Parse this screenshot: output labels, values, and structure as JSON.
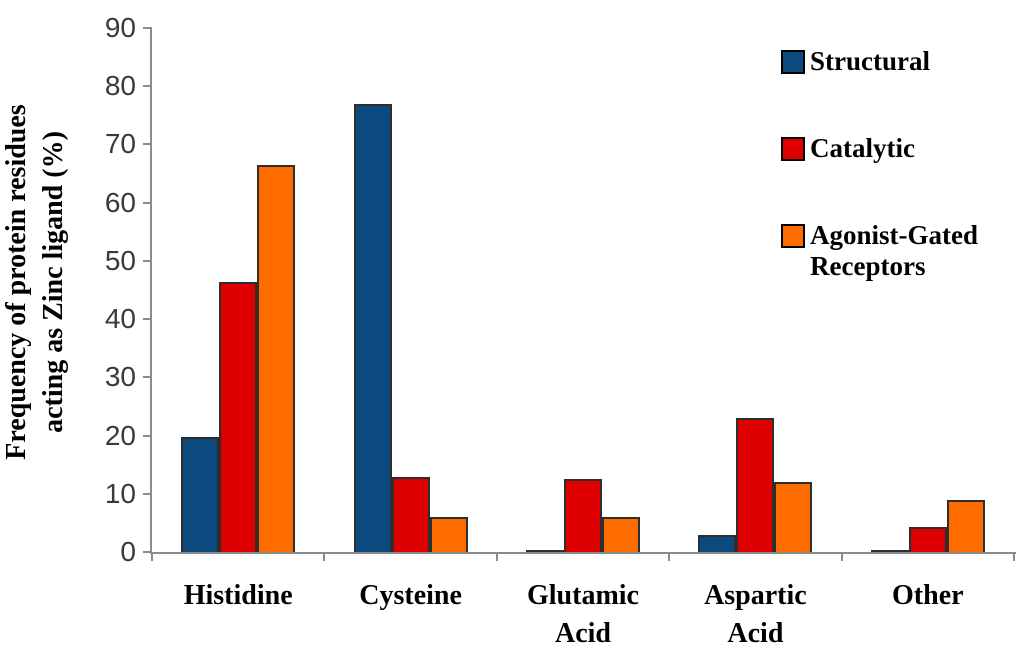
{
  "chart_data": {
    "type": "bar",
    "title": "",
    "xlabel": "",
    "ylabel": "Frequency of protein residues acting as Zinc ligand (%)",
    "ylabel_lines": [
      "Frequency of protein residues",
      "acting as Zinc ligand (%)"
    ],
    "ylim": [
      0,
      90
    ],
    "yticks": [
      0,
      10,
      20,
      30,
      40,
      50,
      60,
      70,
      80,
      90
    ],
    "grid": false,
    "legend_position": "top-right",
    "categories": [
      "Histidine",
      "Cysteine",
      "Glutamic Acid",
      "Aspartic Acid",
      "Other"
    ],
    "series": [
      {
        "name": "Structural",
        "color": "#0b4a7e",
        "values": [
          19.7,
          77.0,
          0.3,
          2.9,
          0.3
        ]
      },
      {
        "name": "Catalytic",
        "color": "#de0000",
        "values": [
          46.4,
          12.8,
          12.5,
          23.0,
          4.3
        ]
      },
      {
        "name": "Agonist-Gated Receptors",
        "color": "#ff6d00",
        "values": [
          66.5,
          6.0,
          6.0,
          12.0,
          9.0
        ]
      }
    ],
    "axis_color": "#8c8c8c",
    "tick_label_color": "#3a3a3a",
    "bar_border_color": "#2e2e2e"
  }
}
